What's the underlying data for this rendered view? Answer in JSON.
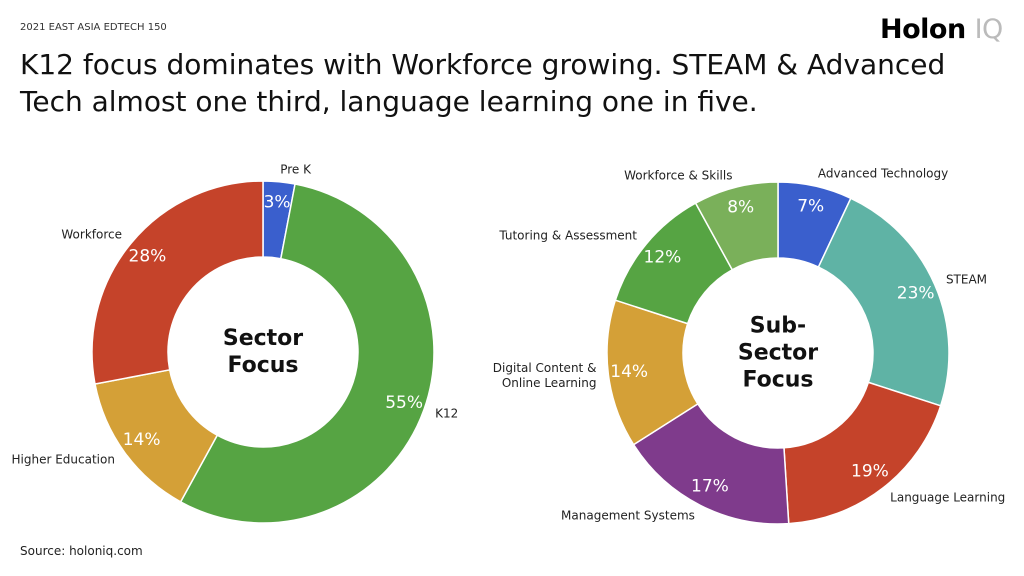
{
  "header": {
    "kicker": "2021 EAST ASIA EDTECH 150",
    "logo": "Holon",
    "logo_suffix": "IQ",
    "title": "K12 focus dominates with Workforce growing. STEAM & Advanced Tech almost one third, language learning one in five.",
    "source": "Source: holoniq.com"
  },
  "chart_data": [
    {
      "type": "pie",
      "title": "Sector Focus",
      "categories": [
        "Pre K",
        "K12",
        "Higher Education",
        "Workforce"
      ],
      "values": [
        3,
        55,
        14,
        28
      ],
      "value_labels": [
        "3%",
        "55%",
        "14%",
        "28%"
      ],
      "colors": [
        "#3a5fcd",
        "#56a443",
        "#d4a037",
        "#c5432a"
      ]
    },
    {
      "type": "pie",
      "title": "Sub-Sector Focus",
      "categories": [
        "Advanced Technology",
        "STEAM",
        "Language Learning",
        "Management Systems",
        "Digital Content & Online Learning",
        "Tutoring & Assessment",
        "Workforce & Skills"
      ],
      "values": [
        7,
        23,
        19,
        17,
        14,
        12,
        8
      ],
      "value_labels": [
        "7%",
        "23%",
        "19%",
        "17%",
        "14%",
        "12%",
        "8%"
      ],
      "colors": [
        "#3a5fcd",
        "#5fb3a5",
        "#c5432a",
        "#7f3b8c",
        "#d4a037",
        "#56a443",
        "#7ab05a"
      ]
    }
  ]
}
